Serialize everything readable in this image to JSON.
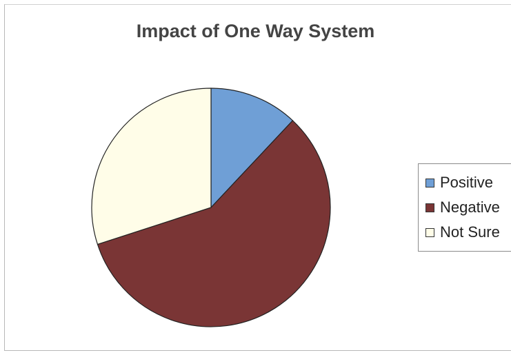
{
  "chart_data": {
    "type": "pie",
    "title": "Impact of One Way System",
    "categories": [
      "Positive",
      "Negative",
      "Not Sure"
    ],
    "values": [
      12,
      58,
      30
    ],
    "colors": [
      "#6f9fd6",
      "#7a3535",
      "#fffde8"
    ],
    "start_angle_deg": 0,
    "direction": "clockwise",
    "legend_position": "right"
  }
}
